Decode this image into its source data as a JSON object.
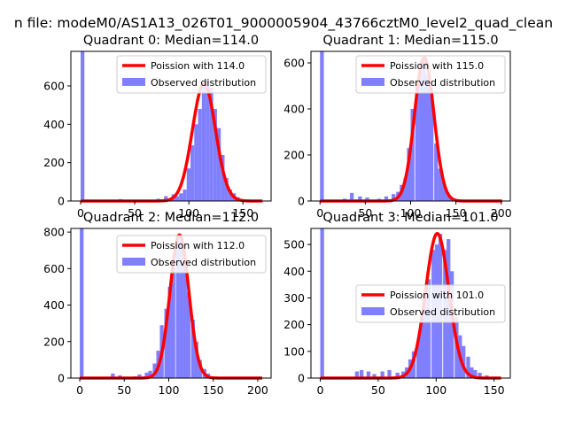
{
  "figure": {
    "suptitle": "n file: modeM0/AS1A13_026T01_9000005904_43766cztM0_level2_quad_clean"
  },
  "chart_data": [
    {
      "type": "bar",
      "title": "Quadrant 0: Median=114.0",
      "median": 114.0,
      "xlim": [
        -9,
        176
      ],
      "ylim": [
        0,
        780
      ],
      "xticks": [
        0,
        50,
        100,
        150
      ],
      "yticks": [
        0,
        200,
        400,
        600
      ],
      "xlabel": "",
      "ylabel": "",
      "legend_placement": "upper-right",
      "series": [
        {
          "name": "Poission with 114.0",
          "kind": "line",
          "color": "#ff0000",
          "mean": 114.0,
          "peak": 612,
          "xrange": [
            0,
            168
          ]
        },
        {
          "name": "Observed distribution",
          "kind": "hist",
          "color": "#8080ff",
          "bin_width": 3.5,
          "bins": [
            {
              "x": 0,
              "y": 780
            },
            {
              "x": 35,
              "y": 10
            },
            {
              "x": 42,
              "y": 6
            },
            {
              "x": 56,
              "y": 5
            },
            {
              "x": 70,
              "y": 12
            },
            {
              "x": 77,
              "y": 25
            },
            {
              "x": 84,
              "y": 35
            },
            {
              "x": 87.5,
              "y": 25
            },
            {
              "x": 91,
              "y": 40
            },
            {
              "x": 94.5,
              "y": 60
            },
            {
              "x": 98,
              "y": 170
            },
            {
              "x": 101.5,
              "y": 290
            },
            {
              "x": 105,
              "y": 400
            },
            {
              "x": 108.5,
              "y": 480
            },
            {
              "x": 112,
              "y": 600
            },
            {
              "x": 115.5,
              "y": 630
            },
            {
              "x": 119,
              "y": 590
            },
            {
              "x": 122.5,
              "y": 480
            },
            {
              "x": 126,
              "y": 380
            },
            {
              "x": 129.5,
              "y": 240
            },
            {
              "x": 133,
              "y": 120
            },
            {
              "x": 136.5,
              "y": 60
            },
            {
              "x": 140,
              "y": 40
            },
            {
              "x": 143.5,
              "y": 20
            },
            {
              "x": 147,
              "y": 10
            }
          ]
        }
      ]
    },
    {
      "type": "bar",
      "title": "Quadrant 1: Median=115.0",
      "median": 115.0,
      "xlim": [
        -10,
        210
      ],
      "ylim": [
        0,
        650
      ],
      "xticks": [
        0,
        50,
        100,
        150,
        200
      ],
      "yticks": [
        0,
        200,
        400,
        600
      ],
      "xlabel": "",
      "ylabel": "",
      "legend_placement": "upper-right",
      "series": [
        {
          "name": "Poission with 115.0",
          "kind": "line",
          "color": "#ff0000",
          "mean": 115.0,
          "peak": 622,
          "xrange": [
            0,
            201
          ]
        },
        {
          "name": "Observed distribution",
          "kind": "hist",
          "color": "#8080ff",
          "bin_width": 4.2,
          "bins": [
            {
              "x": 0,
              "y": 650
            },
            {
              "x": 25,
              "y": 10
            },
            {
              "x": 33,
              "y": 35
            },
            {
              "x": 42,
              "y": 20
            },
            {
              "x": 50,
              "y": 15
            },
            {
              "x": 63,
              "y": 10
            },
            {
              "x": 71,
              "y": 20
            },
            {
              "x": 79,
              "y": 30
            },
            {
              "x": 84,
              "y": 40
            },
            {
              "x": 88,
              "y": 70
            },
            {
              "x": 92,
              "y": 100
            },
            {
              "x": 96,
              "y": 230
            },
            {
              "x": 100,
              "y": 400
            },
            {
              "x": 105,
              "y": 500
            },
            {
              "x": 109,
              "y": 570
            },
            {
              "x": 113,
              "y": 610
            },
            {
              "x": 117,
              "y": 550
            },
            {
              "x": 121,
              "y": 460
            },
            {
              "x": 126,
              "y": 250
            },
            {
              "x": 130,
              "y": 140
            },
            {
              "x": 134,
              "y": 90
            },
            {
              "x": 138,
              "y": 40
            },
            {
              "x": 142,
              "y": 15
            }
          ]
        }
      ]
    },
    {
      "type": "bar",
      "title": "Quadrant 2: Median=112.0",
      "median": 112.0,
      "xlim": [
        -10,
        215
      ],
      "ylim": [
        0,
        820
      ],
      "xticks": [
        0,
        50,
        100,
        150,
        200
      ],
      "yticks": [
        0,
        200,
        400,
        600,
        800
      ],
      "xlabel": "",
      "ylabel": "",
      "legend_placement": "upper-right",
      "series": [
        {
          "name": "Poission with 112.0",
          "kind": "line",
          "color": "#ff0000",
          "mean": 112.0,
          "peak": 785,
          "xrange": [
            0,
            205
          ]
        },
        {
          "name": "Observed distribution",
          "kind": "hist",
          "color": "#8080ff",
          "bin_width": 4.3,
          "bins": [
            {
              "x": 0,
              "y": 820
            },
            {
              "x": 35,
              "y": 25
            },
            {
              "x": 43,
              "y": 15
            },
            {
              "x": 60,
              "y": 10
            },
            {
              "x": 65,
              "y": 20
            },
            {
              "x": 73,
              "y": 30
            },
            {
              "x": 77,
              "y": 40
            },
            {
              "x": 82,
              "y": 80
            },
            {
              "x": 86,
              "y": 150
            },
            {
              "x": 90,
              "y": 290
            },
            {
              "x": 95,
              "y": 380
            },
            {
              "x": 99,
              "y": 500
            },
            {
              "x": 103,
              "y": 610
            },
            {
              "x": 108,
              "y": 780
            },
            {
              "x": 112,
              "y": 760
            },
            {
              "x": 116,
              "y": 620
            },
            {
              "x": 120,
              "y": 470
            },
            {
              "x": 125,
              "y": 320
            },
            {
              "x": 129,
              "y": 200
            },
            {
              "x": 133,
              "y": 100
            },
            {
              "x": 138,
              "y": 50
            },
            {
              "x": 142,
              "y": 25
            }
          ]
        }
      ]
    },
    {
      "type": "bar",
      "title": "Quadrant 3: Median=101.0",
      "median": 101.0,
      "xlim": [
        -8,
        164
      ],
      "ylim": [
        0,
        560
      ],
      "xticks": [
        0,
        50,
        100,
        150
      ],
      "yticks": [
        0,
        100,
        200,
        300,
        400,
        500
      ],
      "xlabel": "",
      "ylabel": "",
      "legend_placement": "center-right",
      "series": [
        {
          "name": "Poission with 101.0",
          "kind": "line",
          "color": "#ff0000",
          "mean": 101.0,
          "peak": 541,
          "xrange": [
            0,
            156
          ]
        },
        {
          "name": "Observed distribution",
          "kind": "hist",
          "color": "#8080ff",
          "bin_width": 3.3,
          "bins": [
            {
              "x": 0,
              "y": 560
            },
            {
              "x": 30,
              "y": 25
            },
            {
              "x": 34,
              "y": 30
            },
            {
              "x": 40,
              "y": 25
            },
            {
              "x": 45,
              "y": 15
            },
            {
              "x": 52,
              "y": 25
            },
            {
              "x": 58,
              "y": 30
            },
            {
              "x": 65,
              "y": 20
            },
            {
              "x": 70,
              "y": 25
            },
            {
              "x": 73,
              "y": 40
            },
            {
              "x": 76,
              "y": 70
            },
            {
              "x": 79,
              "y": 100
            },
            {
              "x": 83,
              "y": 140
            },
            {
              "x": 86,
              "y": 230
            },
            {
              "x": 89,
              "y": 320
            },
            {
              "x": 92,
              "y": 370
            },
            {
              "x": 96,
              "y": 480
            },
            {
              "x": 99,
              "y": 500
            },
            {
              "x": 102,
              "y": 540
            },
            {
              "x": 106,
              "y": 480
            },
            {
              "x": 109,
              "y": 520
            },
            {
              "x": 112,
              "y": 400
            },
            {
              "x": 116,
              "y": 230
            },
            {
              "x": 119,
              "y": 160
            },
            {
              "x": 122,
              "y": 120
            },
            {
              "x": 126,
              "y": 80
            },
            {
              "x": 129,
              "y": 40
            },
            {
              "x": 132,
              "y": 30
            },
            {
              "x": 136,
              "y": 20
            },
            {
              "x": 142,
              "y": 10
            }
          ]
        }
      ]
    }
  ]
}
